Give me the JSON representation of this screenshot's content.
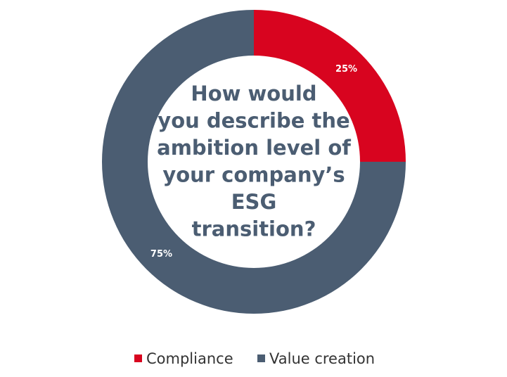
{
  "chart_data": {
    "type": "donut",
    "title": [
      "How would",
      "you describe the",
      "ambition level of",
      "your company’s",
      "ESG",
      "transition?"
    ],
    "categories": [
      "Compliance",
      "Value creation"
    ],
    "values": [
      25,
      75
    ],
    "value_labels": [
      "25%",
      "75%"
    ],
    "colors": [
      "#d8041f",
      "#4b5d72"
    ]
  }
}
